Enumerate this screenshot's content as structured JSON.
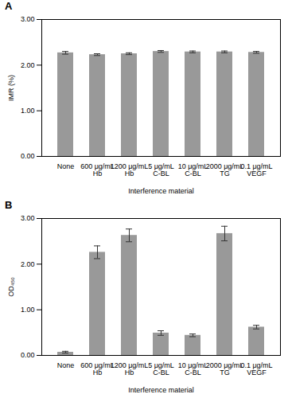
{
  "chart_data": [
    {
      "type": "bar",
      "title": "A",
      "categories": [
        "None",
        "600 μg/mL Hb",
        "1200 μg/mL Hb",
        "5 μg/mL C-BL",
        "10 μg/mL C-BL",
        "2000 μg/mL TG",
        "0.1 μg/mL VEGF"
      ],
      "values": [
        2.27,
        2.23,
        2.25,
        2.3,
        2.29,
        2.29,
        2.28
      ],
      "errors": [
        0.03,
        0.02,
        0.02,
        0.02,
        0.02,
        0.02,
        0.02
      ],
      "color": "#999999",
      "x_label": "Interference material",
      "y_label": "IMR (%)",
      "ylim": [
        0,
        3
      ],
      "yticks": [
        {
          "value": 0,
          "label": "0.00"
        },
        {
          "value": 1,
          "label": "1.00"
        },
        {
          "value": 2,
          "label": "2.00"
        },
        {
          "value": 3,
          "label": "3.00"
        }
      ],
      "grid": false
    },
    {
      "type": "bar",
      "title": "B",
      "categories": [
        "None",
        "600 μg/mL Hb",
        "1200 μg/mL Hb",
        "5 μg/mL C-BL",
        "10 μg/mL C-BL",
        "2000 μg/mL TG",
        "0.1 μg/mL VEGF"
      ],
      "values": [
        0.07,
        2.26,
        2.63,
        0.49,
        0.44,
        2.67,
        0.62
      ],
      "errors": [
        0.02,
        0.14,
        0.14,
        0.05,
        0.03,
        0.16,
        0.04
      ],
      "color": "#999999",
      "x_label": "Interference material",
      "y_label": "OD₄₅₀",
      "ylim": [
        0,
        3
      ],
      "yticks": [
        {
          "value": 0,
          "label": "0.00"
        },
        {
          "value": 1,
          "label": "1.00"
        },
        {
          "value": 2,
          "label": "2.00"
        },
        {
          "value": 3,
          "label": "3.00"
        }
      ],
      "grid": false
    }
  ]
}
